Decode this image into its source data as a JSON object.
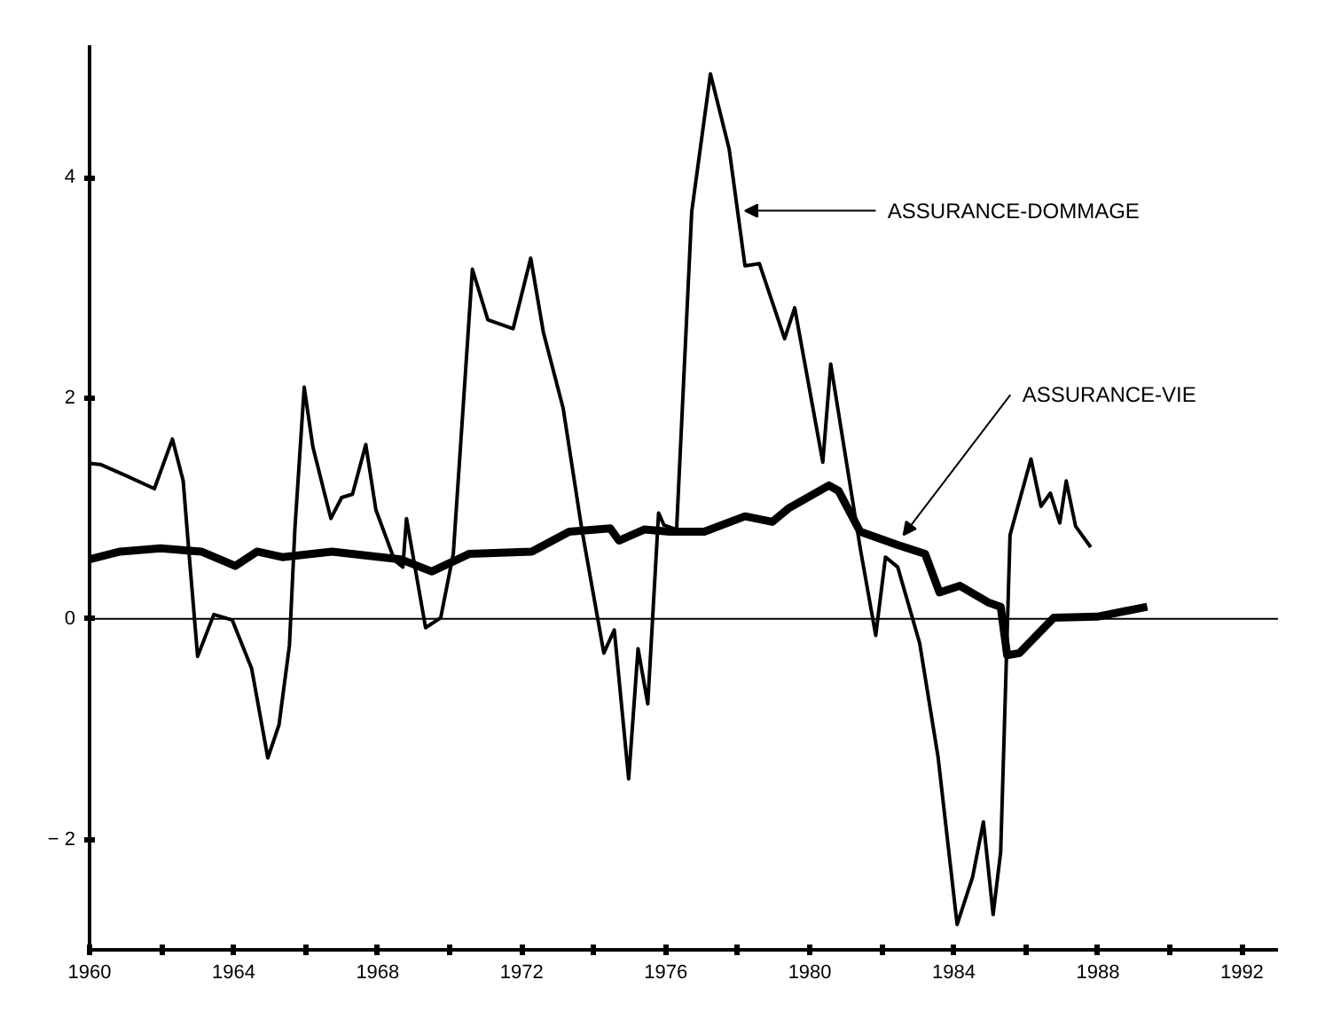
{
  "chart_data": {
    "type": "line",
    "xlim": [
      1960,
      1993
    ],
    "ylim": [
      -3,
      5.2
    ],
    "xticks": [
      1960,
      {
        "value": 1962,
        "label": null
      },
      1964,
      {
        "value": 1966,
        "label": null
      },
      1968,
      {
        "value": 1970,
        "label": null
      },
      1972,
      {
        "value": 1974,
        "label": null
      },
      1976,
      {
        "value": 1978,
        "label": null
      },
      1980,
      {
        "value": 1982,
        "label": null
      },
      1984,
      {
        "value": 1986,
        "label": null
      },
      1988,
      {
        "value": 1990,
        "label": null
      },
      1992
    ],
    "yticks": [
      {
        "value": -2,
        "label": "− 2"
      },
      0,
      2,
      4
    ],
    "marker": "none",
    "line_style": "solid",
    "ref_lines": [
      {
        "axis": "y",
        "value": 0,
        "color": "#000000"
      }
    ],
    "annotations": [
      {
        "text": "ASSURANCE-DOMMAGE",
        "x": 1978.2,
        "y": 3.7
      },
      {
        "text": "ASSURANCE-VIE",
        "x": 1982.6,
        "y": 0.76
      }
    ],
    "series": [
      {
        "color": "#000000",
        "x": [
          1960,
          1960.3,
          1961.0,
          1961.8,
          1962.3,
          1962.6,
          1962.75,
          1963.0,
          1963.45,
          1963.96,
          1964.5,
          1964.95,
          1965.26,
          1965.55,
          1965.7,
          1965.96,
          1966.2,
          1966.7,
          1967.0,
          1967.3,
          1967.67,
          1967.95,
          1968.47,
          1968.7,
          1968.8,
          1969.33,
          1969.75,
          1970.1,
          1970.63,
          1971.06,
          1971.76,
          1972.25,
          1972.6,
          1973.15,
          1973.67,
          1974.28,
          1974.57,
          1974.97,
          1975.23,
          1975.5,
          1975.8,
          1975.95,
          1976.3,
          1976.72,
          1977.24,
          1977.76,
          1978.2,
          1978.6,
          1979.3,
          1979.58,
          1980.36,
          1980.58,
          1981.4,
          1981.83,
          1982.1,
          1982.44,
          1983.05,
          1983.56,
          1984.09,
          1984.52,
          1984.82,
          1985.09,
          1985.3,
          1985.56,
          1986.14,
          1986.42,
          1986.68,
          1986.94,
          1987.12,
          1987.38,
          1987.8
        ],
        "values": [
          1.41,
          1.4,
          1.3,
          1.18,
          1.63,
          1.25,
          0.64,
          -0.34,
          0.04,
          -0.01,
          -0.45,
          -1.26,
          -0.96,
          -0.24,
          0.81,
          2.1,
          1.56,
          0.91,
          1.1,
          1.13,
          1.58,
          0.99,
          0.53,
          0.47,
          0.91,
          -0.08,
          0.01,
          0.59,
          3.17,
          2.71,
          2.63,
          3.27,
          2.6,
          1.91,
          0.81,
          -0.31,
          -0.1,
          -1.45,
          -0.27,
          -0.77,
          0.96,
          0.85,
          0.81,
          3.69,
          4.94,
          4.26,
          3.2,
          3.22,
          2.54,
          2.82,
          1.42,
          2.31,
          0.64,
          -0.15,
          0.56,
          0.47,
          -0.22,
          -1.25,
          -2.77,
          -2.34,
          -1.84,
          -2.68,
          -2.11,
          0.76,
          1.45,
          1.02,
          1.14,
          0.87,
          1.25,
          0.84,
          0.65
        ]
      },
      {
        "color": "#000000",
        "x": [
          1960,
          1960.85,
          1961.97,
          1963.1,
          1964.05,
          1964.65,
          1965.35,
          1966.73,
          1968.64,
          1969.5,
          1970.55,
          1972.28,
          1973.32,
          1974.46,
          1974.7,
          1975.4,
          1976.1,
          1977.07,
          1978.2,
          1978.96,
          1979.4,
          1980.53,
          1980.8,
          1981.4,
          1982.44,
          1983.2,
          1983.6,
          1984.17,
          1984.95,
          1985.3,
          1985.48,
          1985.82,
          1986.77,
          1987.98,
          1989.37
        ],
        "values": [
          0.54,
          0.61,
          0.64,
          0.61,
          0.48,
          0.61,
          0.56,
          0.61,
          0.54,
          0.43,
          0.59,
          0.61,
          0.79,
          0.82,
          0.71,
          0.81,
          0.79,
          0.79,
          0.93,
          0.88,
          1.0,
          1.21,
          1.16,
          0.79,
          0.67,
          0.59,
          0.24,
          0.3,
          0.15,
          0.11,
          -0.33,
          -0.31,
          0.01,
          0.02,
          0.11
        ]
      }
    ]
  }
}
